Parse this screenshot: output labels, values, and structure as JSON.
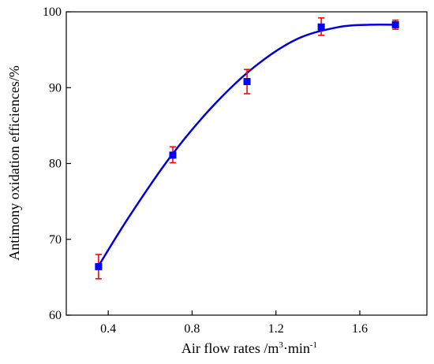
{
  "chart_data": {
    "type": "scatter",
    "xlabel": "Air flow rates /m",
    "xlabel_sup1": "3",
    "xlabel_mid": "·min",
    "xlabel_sup2": "-1",
    "ylabel": "Antimony oxidation efficiences/%",
    "xlim": [
      0.2,
      1.92
    ],
    "ylim": [
      60,
      100
    ],
    "x_ticks": [
      0.4,
      0.8,
      1.2,
      1.6
    ],
    "x_tick_labels": [
      "0.4",
      "0.8",
      "1.2",
      "1.6"
    ],
    "y_ticks": [
      60,
      70,
      80,
      90,
      100
    ],
    "y_tick_labels": [
      "60",
      "70",
      "80",
      "90",
      "100"
    ],
    "grid": false,
    "series": [
      {
        "points": [
          {
            "x": 0.354,
            "y": 66.4,
            "err_low": 1.6,
            "err_high": 1.6
          },
          {
            "x": 0.708,
            "y": 81.1,
            "err_low": 1.0,
            "err_high": 1.1
          },
          {
            "x": 1.062,
            "y": 90.8,
            "err_low": 1.6,
            "err_high": 1.6
          },
          {
            "x": 1.416,
            "y": 98.0,
            "err_low": 1.1,
            "err_high": 1.2
          },
          {
            "x": 1.77,
            "y": 98.3,
            "err_low": 0.6,
            "err_high": 0.6
          }
        ],
        "fit_curve": {
          "x": [
            0.354,
            0.5,
            0.7,
            0.9,
            1.1,
            1.3,
            1.5,
            1.65,
            1.77
          ],
          "y": [
            66.5,
            73.0,
            81.0,
            87.6,
            92.8,
            96.4,
            98.0,
            98.3,
            98.3
          ]
        }
      }
    ],
    "colors": {
      "marker": "#0000ff",
      "error_bar": "#ff0000",
      "fit_line": "#0000dd",
      "axis": "#000000"
    }
  }
}
